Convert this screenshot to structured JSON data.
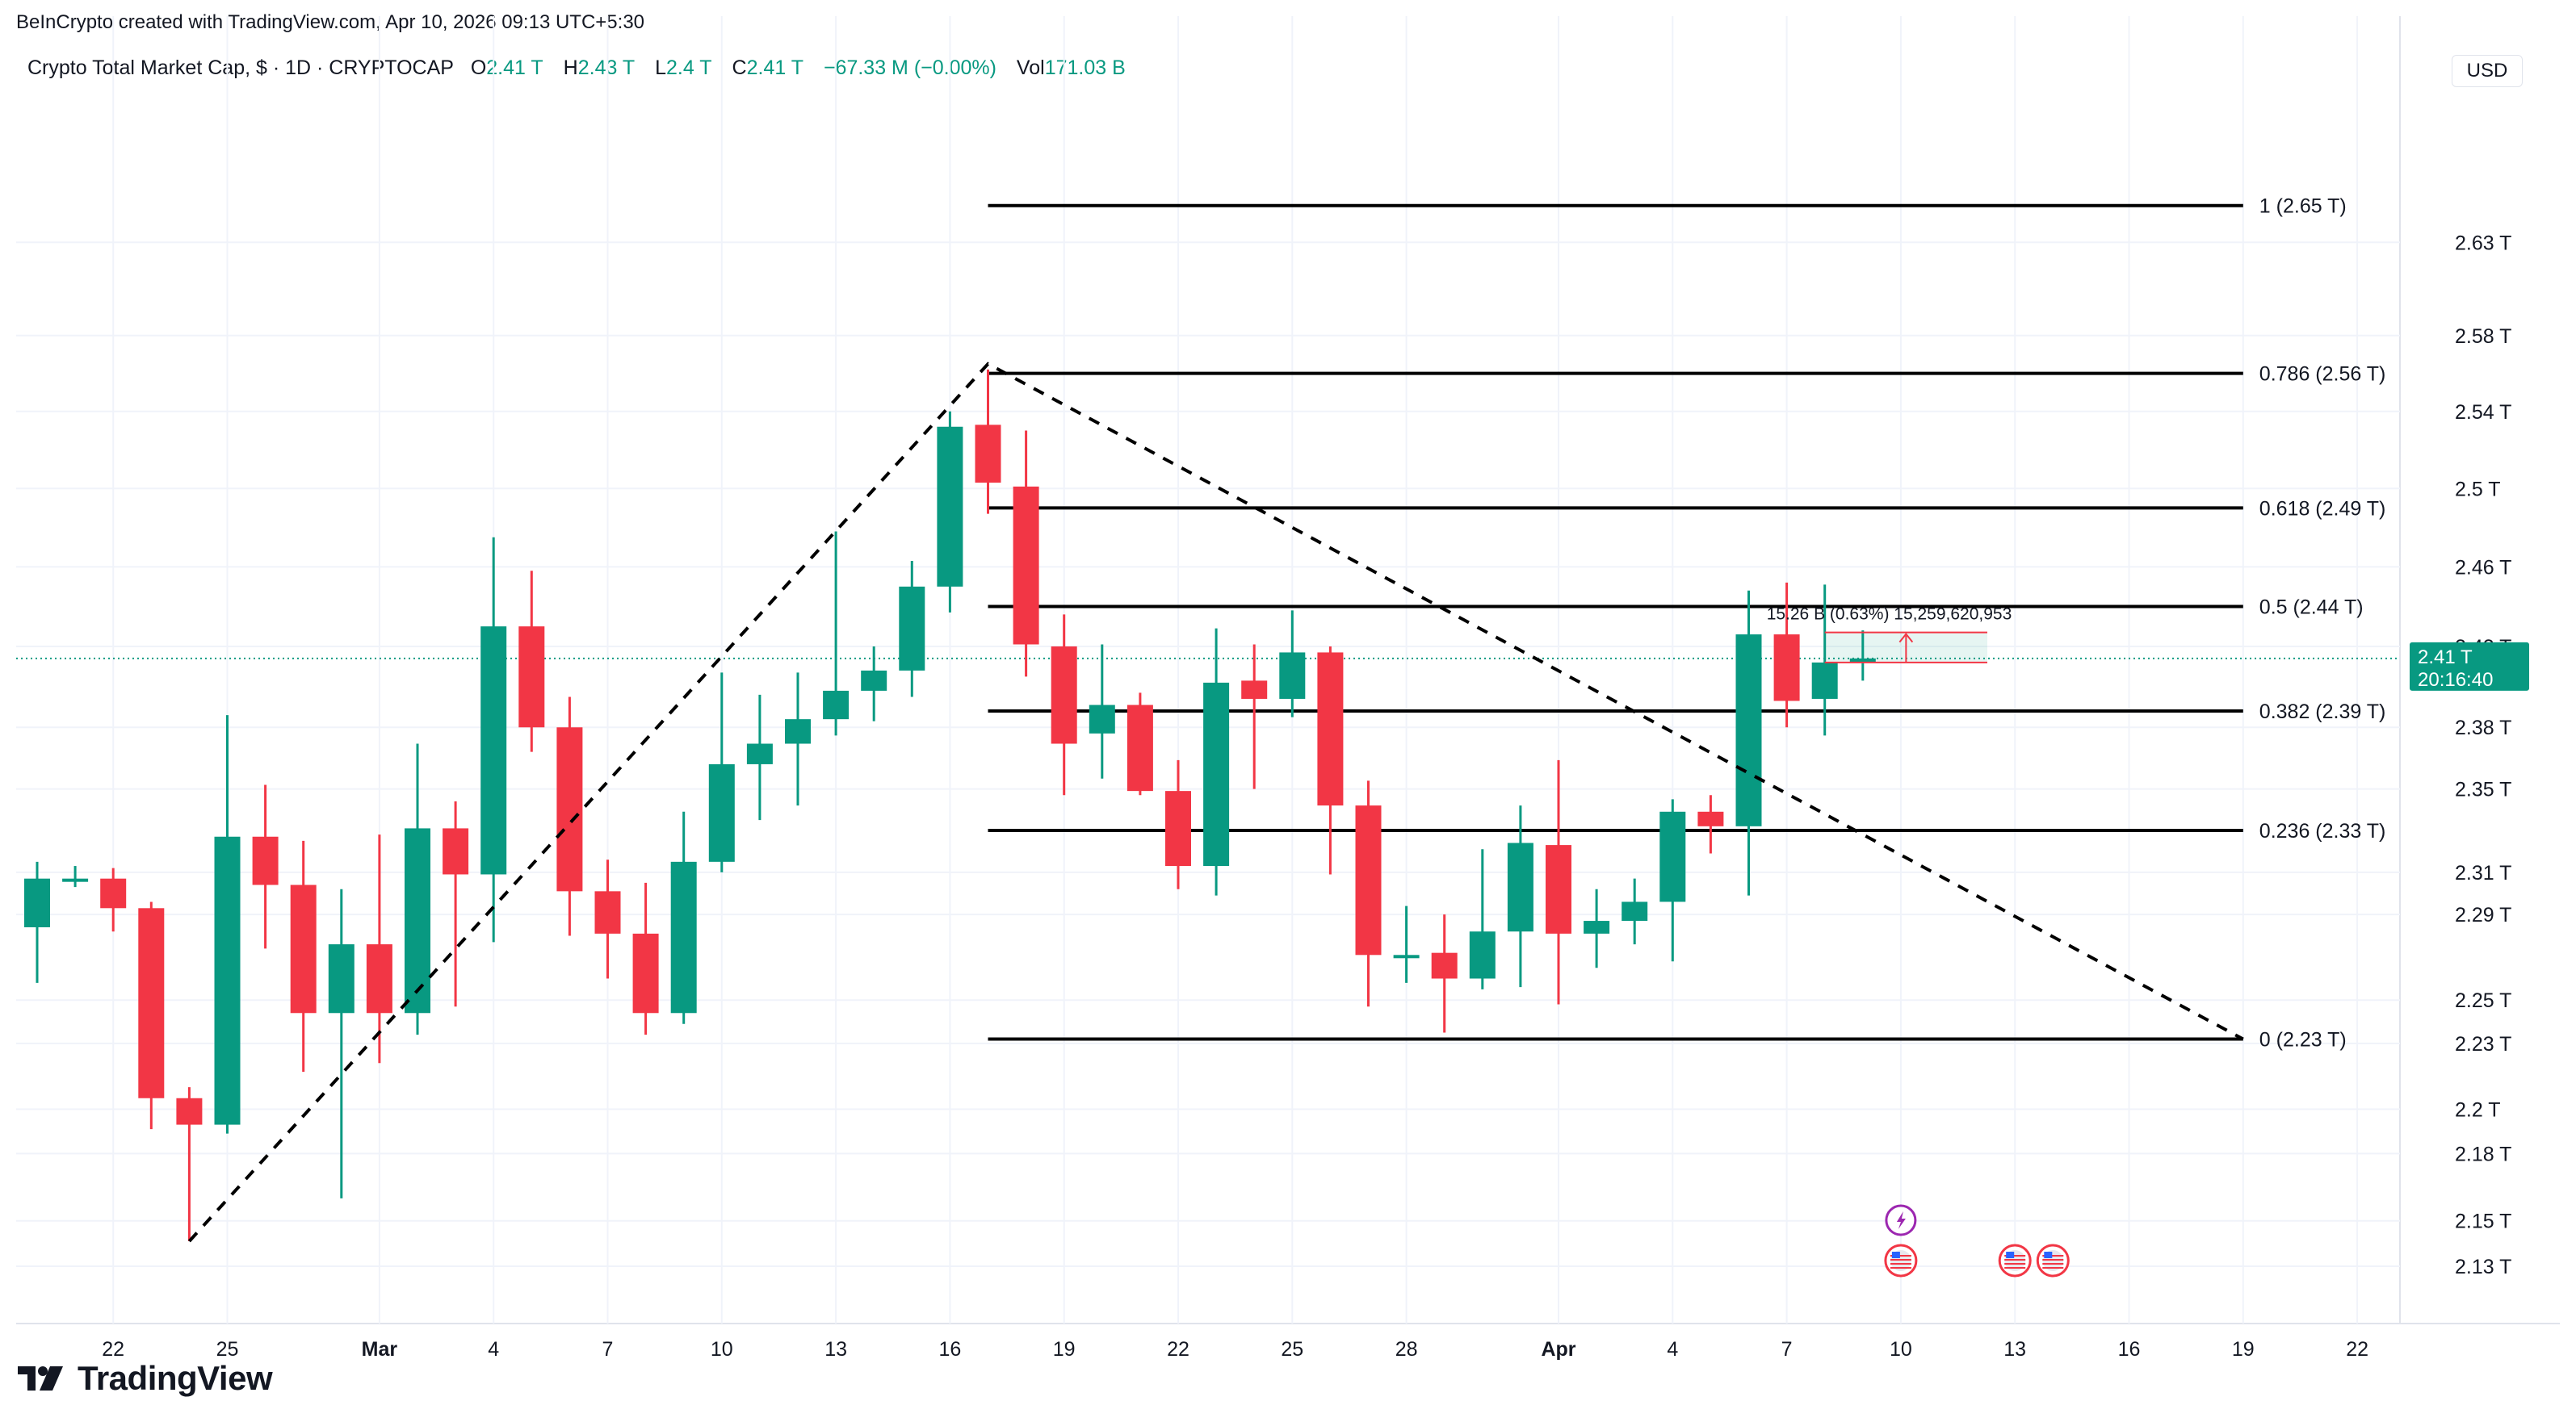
{
  "credit": "BeInCrypto created with TradingView.com, Apr 10, 2026 09:13 UTC+5:30",
  "legend": {
    "symbol": "Crypto Total Market Cap, $ · 1D · CRYPTOCAP",
    "o_label": "O",
    "o_value": "2.41 T",
    "h_label": "H",
    "h_value": "2.43 T",
    "l_label": "L",
    "l_value": "2.4 T",
    "c_label": "C",
    "c_value": "2.41 T",
    "change": "−67.33 M (−0.00%)",
    "vol_label": "Vol",
    "vol_value": "171.03 B"
  },
  "currency": "USD",
  "brand": "TradingView",
  "colors": {
    "up": "#089981",
    "down": "#f23645",
    "grid": "#f0f3fa",
    "fib": "#000000"
  },
  "chart_data": {
    "type": "candlestick",
    "y_axis_scale": "log",
    "ylim": [
      2.105,
      2.71
    ],
    "y_ticks": [
      {
        "value": 2.13,
        "label": "2.13 T"
      },
      {
        "value": 2.15,
        "label": "2.15 T"
      },
      {
        "value": 2.18,
        "label": "2.18 T"
      },
      {
        "value": 2.2,
        "label": "2.2 T"
      },
      {
        "value": 2.23,
        "label": "2.23 T"
      },
      {
        "value": 2.25,
        "label": "2.25 T"
      },
      {
        "value": 2.29,
        "label": "2.29 T"
      },
      {
        "value": 2.31,
        "label": "2.31 T"
      },
      {
        "value": 2.35,
        "label": "2.35 T"
      },
      {
        "value": 2.38,
        "label": "2.38 T"
      },
      {
        "value": 2.42,
        "label": "2.42 T"
      },
      {
        "value": 2.46,
        "label": "2.46 T"
      },
      {
        "value": 2.5,
        "label": "2.5 T"
      },
      {
        "value": 2.54,
        "label": "2.54 T"
      },
      {
        "value": 2.58,
        "label": "2.58 T"
      },
      {
        "value": 2.63,
        "label": "2.63 T"
      }
    ],
    "x_ticks": [
      {
        "date": "2026-02-22",
        "label": "22"
      },
      {
        "date": "2026-02-25",
        "label": "25"
      },
      {
        "date": "2026-03-01",
        "label": "Mar",
        "bold": true
      },
      {
        "date": "2026-03-04",
        "label": "4"
      },
      {
        "date": "2026-03-07",
        "label": "7"
      },
      {
        "date": "2026-03-10",
        "label": "10"
      },
      {
        "date": "2026-03-13",
        "label": "13"
      },
      {
        "date": "2026-03-16",
        "label": "16"
      },
      {
        "date": "2026-03-19",
        "label": "19"
      },
      {
        "date": "2026-03-22",
        "label": "22"
      },
      {
        "date": "2026-03-25",
        "label": "25"
      },
      {
        "date": "2026-03-28",
        "label": "28"
      },
      {
        "date": "2026-04-01",
        "label": "Apr",
        "bold": true
      },
      {
        "date": "2026-04-04",
        "label": "4"
      },
      {
        "date": "2026-04-07",
        "label": "7"
      },
      {
        "date": "2026-04-10",
        "label": "10"
      },
      {
        "date": "2026-04-13",
        "label": "13"
      },
      {
        "date": "2026-04-16",
        "label": "16"
      },
      {
        "date": "2026-04-19",
        "label": "19"
      },
      {
        "date": "2026-04-22",
        "label": "22"
      }
    ],
    "candles": [
      {
        "date": "2026-02-20",
        "o": 2.284,
        "h": 2.315,
        "l": 2.258,
        "c": 2.307
      },
      {
        "date": "2026-02-21",
        "o": 2.307,
        "h": 2.313,
        "l": 2.303,
        "c": 2.307
      },
      {
        "date": "2026-02-22",
        "o": 2.307,
        "h": 2.312,
        "l": 2.282,
        "c": 2.293
      },
      {
        "date": "2026-02-23",
        "o": 2.293,
        "h": 2.296,
        "l": 2.191,
        "c": 2.205
      },
      {
        "date": "2026-02-24",
        "o": 2.205,
        "h": 2.21,
        "l": 2.141,
        "c": 2.193
      },
      {
        "date": "2026-02-25",
        "o": 2.193,
        "h": 2.386,
        "l": 2.189,
        "c": 2.327
      },
      {
        "date": "2026-02-26",
        "o": 2.327,
        "h": 2.352,
        "l": 2.274,
        "c": 2.304
      },
      {
        "date": "2026-02-27",
        "o": 2.304,
        "h": 2.325,
        "l": 2.217,
        "c": 2.244
      },
      {
        "date": "2026-02-28",
        "o": 2.244,
        "h": 2.302,
        "l": 2.16,
        "c": 2.276
      },
      {
        "date": "2026-03-01",
        "o": 2.276,
        "h": 2.328,
        "l": 2.221,
        "c": 2.244
      },
      {
        "date": "2026-03-02",
        "o": 2.244,
        "h": 2.372,
        "l": 2.234,
        "c": 2.331
      },
      {
        "date": "2026-03-03",
        "o": 2.331,
        "h": 2.344,
        "l": 2.247,
        "c": 2.309
      },
      {
        "date": "2026-03-04",
        "o": 2.309,
        "h": 2.475,
        "l": 2.277,
        "c": 2.43
      },
      {
        "date": "2026-03-05",
        "o": 2.43,
        "h": 2.458,
        "l": 2.368,
        "c": 2.38
      },
      {
        "date": "2026-03-06",
        "o": 2.38,
        "h": 2.395,
        "l": 2.28,
        "c": 2.301
      },
      {
        "date": "2026-03-07",
        "o": 2.301,
        "h": 2.316,
        "l": 2.26,
        "c": 2.281
      },
      {
        "date": "2026-03-08",
        "o": 2.281,
        "h": 2.305,
        "l": 2.234,
        "c": 2.244
      },
      {
        "date": "2026-03-09",
        "o": 2.244,
        "h": 2.339,
        "l": 2.239,
        "c": 2.315
      },
      {
        "date": "2026-03-10",
        "o": 2.315,
        "h": 2.407,
        "l": 2.31,
        "c": 2.362
      },
      {
        "date": "2026-03-11",
        "o": 2.362,
        "h": 2.396,
        "l": 2.335,
        "c": 2.372
      },
      {
        "date": "2026-03-12",
        "o": 2.372,
        "h": 2.407,
        "l": 2.342,
        "c": 2.384
      },
      {
        "date": "2026-03-13",
        "o": 2.384,
        "h": 2.478,
        "l": 2.376,
        "c": 2.398
      },
      {
        "date": "2026-03-14",
        "o": 2.398,
        "h": 2.42,
        "l": 2.383,
        "c": 2.408
      },
      {
        "date": "2026-03-15",
        "o": 2.408,
        "h": 2.463,
        "l": 2.395,
        "c": 2.45
      },
      {
        "date": "2026-03-16",
        "o": 2.45,
        "h": 2.54,
        "l": 2.437,
        "c": 2.532
      },
      {
        "date": "2026-03-17",
        "o": 2.533,
        "h": 2.562,
        "l": 2.487,
        "c": 2.503
      },
      {
        "date": "2026-03-18",
        "o": 2.501,
        "h": 2.53,
        "l": 2.405,
        "c": 2.421
      },
      {
        "date": "2026-03-19",
        "o": 2.42,
        "h": 2.436,
        "l": 2.347,
        "c": 2.372
      },
      {
        "date": "2026-03-20",
        "o": 2.377,
        "h": 2.421,
        "l": 2.355,
        "c": 2.391
      },
      {
        "date": "2026-03-21",
        "o": 2.391,
        "h": 2.397,
        "l": 2.347,
        "c": 2.349
      },
      {
        "date": "2026-03-22",
        "o": 2.349,
        "h": 2.364,
        "l": 2.302,
        "c": 2.313
      },
      {
        "date": "2026-03-23",
        "o": 2.313,
        "h": 2.429,
        "l": 2.299,
        "c": 2.402
      },
      {
        "date": "2026-03-24",
        "o": 2.403,
        "h": 2.421,
        "l": 2.35,
        "c": 2.394
      },
      {
        "date": "2026-03-25",
        "o": 2.394,
        "h": 2.438,
        "l": 2.385,
        "c": 2.417
      },
      {
        "date": "2026-03-26",
        "o": 2.417,
        "h": 2.42,
        "l": 2.309,
        "c": 2.342
      },
      {
        "date": "2026-03-27",
        "o": 2.342,
        "h": 2.354,
        "l": 2.247,
        "c": 2.271
      },
      {
        "date": "2026-03-28",
        "o": 2.271,
        "h": 2.294,
        "l": 2.258,
        "c": 2.271
      },
      {
        "date": "2026-03-29",
        "o": 2.272,
        "h": 2.29,
        "l": 2.235,
        "c": 2.26
      },
      {
        "date": "2026-03-30",
        "o": 2.26,
        "h": 2.321,
        "l": 2.255,
        "c": 2.282
      },
      {
        "date": "2026-03-31",
        "o": 2.282,
        "h": 2.342,
        "l": 2.256,
        "c": 2.324
      },
      {
        "date": "2026-04-01",
        "o": 2.323,
        "h": 2.364,
        "l": 2.248,
        "c": 2.281
      },
      {
        "date": "2026-04-02",
        "o": 2.281,
        "h": 2.302,
        "l": 2.265,
        "c": 2.287
      },
      {
        "date": "2026-04-03",
        "o": 2.287,
        "h": 2.307,
        "l": 2.276,
        "c": 2.296
      },
      {
        "date": "2026-04-04",
        "o": 2.296,
        "h": 2.345,
        "l": 2.268,
        "c": 2.339
      },
      {
        "date": "2026-04-05",
        "o": 2.339,
        "h": 2.347,
        "l": 2.319,
        "c": 2.332
      },
      {
        "date": "2026-04-06",
        "o": 2.332,
        "h": 2.448,
        "l": 2.299,
        "c": 2.426
      },
      {
        "date": "2026-04-07",
        "o": 2.426,
        "h": 2.452,
        "l": 2.38,
        "c": 2.393
      },
      {
        "date": "2026-04-08",
        "o": 2.394,
        "h": 2.451,
        "l": 2.376,
        "c": 2.412
      },
      {
        "date": "2026-04-09",
        "o": 2.412,
        "h": 2.428,
        "l": 2.403,
        "c": 2.414
      }
    ],
    "zigzag": [
      {
        "date": "2026-02-24",
        "value": 2.141
      },
      {
        "date": "2026-03-17",
        "value": 2.565
      },
      {
        "date": "2026-04-19",
        "value": 2.232
      }
    ],
    "fib_levels": [
      {
        "ratio": "1",
        "value": 2.65,
        "label": "1 (2.65 T)"
      },
      {
        "ratio": "0.786",
        "value": 2.56,
        "label": "0.786 (2.56 T)"
      },
      {
        "ratio": "0.618",
        "value": 2.49,
        "label": "0.618 (2.49 T)"
      },
      {
        "ratio": "0.5",
        "value": 2.44,
        "label": "0.5 (2.44 T)"
      },
      {
        "ratio": "0.382",
        "value": 2.388,
        "label": "0.382 (2.39 T)"
      },
      {
        "ratio": "0.236",
        "value": 2.33,
        "label": "0.236 (2.33 T)"
      },
      {
        "ratio": "0",
        "value": 2.232,
        "label": "0 (2.23 T)"
      }
    ],
    "fib_start_date": "2026-03-17",
    "fib_end_date": "2026-04-19",
    "measure": {
      "label": "15.26 B (0.63%) 15,259,620,953",
      "from_date": "2026-04-08",
      "to_date": "2026-04-11",
      "low": 2.412,
      "high": 2.427
    },
    "last_price": {
      "value": 2.414,
      "label": "2.41 T",
      "countdown": "20:16:40"
    },
    "events": [
      {
        "date": "2026-04-10",
        "type": "flash",
        "row": 1
      },
      {
        "date": "2026-04-10",
        "type": "flag",
        "row": 2
      },
      {
        "date": "2026-04-13",
        "type": "flag",
        "row": 2
      },
      {
        "date": "2026-04-14",
        "type": "flag",
        "row": 2
      }
    ]
  }
}
